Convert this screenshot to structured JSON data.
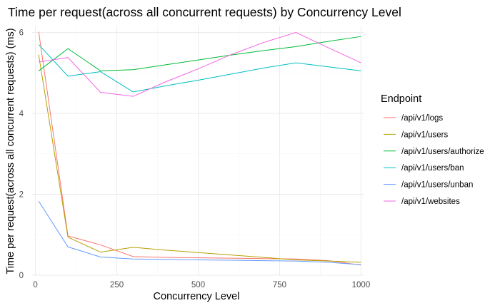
{
  "chart_data": {
    "type": "line",
    "title": "Time per request(across all concurrent requests) by Concurrency Level",
    "xlabel": "Concurrency Level",
    "ylabel": "Time per request(across all concurrent requests) (ms)",
    "xlim": [
      -10,
      1010
    ],
    "ylim": [
      0,
      6.15
    ],
    "x_ticks": [
      0,
      250,
      500,
      750,
      1000
    ],
    "y_ticks": [
      0,
      2,
      4,
      6
    ],
    "grid": true,
    "legend": {
      "title": "Endpoint",
      "position": "right"
    },
    "series": [
      {
        "name": "/api/v1/logs",
        "color": "#F8766D",
        "x": [
          10,
          100,
          200,
          300,
          400,
          500,
          600,
          700,
          800,
          900,
          1000
        ],
        "y": [
          6.02,
          0.97,
          0.75,
          0.46,
          0.44,
          0.43,
          0.42,
          0.41,
          0.4,
          0.36,
          0.25
        ]
      },
      {
        "name": "/api/v1/users",
        "color": "#B79F00",
        "x": [
          10,
          100,
          200,
          300,
          400,
          500,
          600,
          700,
          800,
          900,
          1000
        ],
        "y": [
          5.45,
          0.94,
          0.57,
          0.69,
          0.62,
          0.56,
          0.5,
          0.44,
          0.38,
          0.35,
          0.32
        ]
      },
      {
        "name": "/api/v1/users/authorize",
        "color": "#00BA38",
        "x": [
          10,
          100,
          200,
          300,
          400,
          500,
          600,
          700,
          800,
          900,
          1000
        ],
        "y": [
          5.05,
          5.6,
          5.05,
          5.08,
          5.2,
          5.32,
          5.44,
          5.55,
          5.65,
          5.78,
          5.9
        ]
      },
      {
        "name": "/api/v1/users/ban",
        "color": "#00BFC4",
        "x": [
          10,
          100,
          200,
          300,
          400,
          500,
          600,
          700,
          800,
          900,
          1000
        ],
        "y": [
          5.7,
          4.92,
          5.03,
          4.53,
          4.68,
          4.82,
          4.97,
          5.12,
          5.25,
          5.15,
          5.05
        ]
      },
      {
        "name": "/api/v1/users/unban",
        "color": "#619CFF",
        "x": [
          10,
          100,
          200,
          300,
          400,
          500,
          600,
          700,
          800,
          900,
          1000
        ],
        "y": [
          1.83,
          0.7,
          0.45,
          0.4,
          0.39,
          0.38,
          0.37,
          0.36,
          0.35,
          0.32,
          0.26
        ]
      },
      {
        "name": "/api/v1/websites",
        "color": "#F564E3",
        "x": [
          10,
          100,
          200,
          300,
          400,
          500,
          600,
          700,
          800,
          900,
          1000
        ],
        "y": [
          5.27,
          5.38,
          4.52,
          4.42,
          4.78,
          5.1,
          5.45,
          5.75,
          6.0,
          5.62,
          5.25
        ]
      }
    ]
  }
}
